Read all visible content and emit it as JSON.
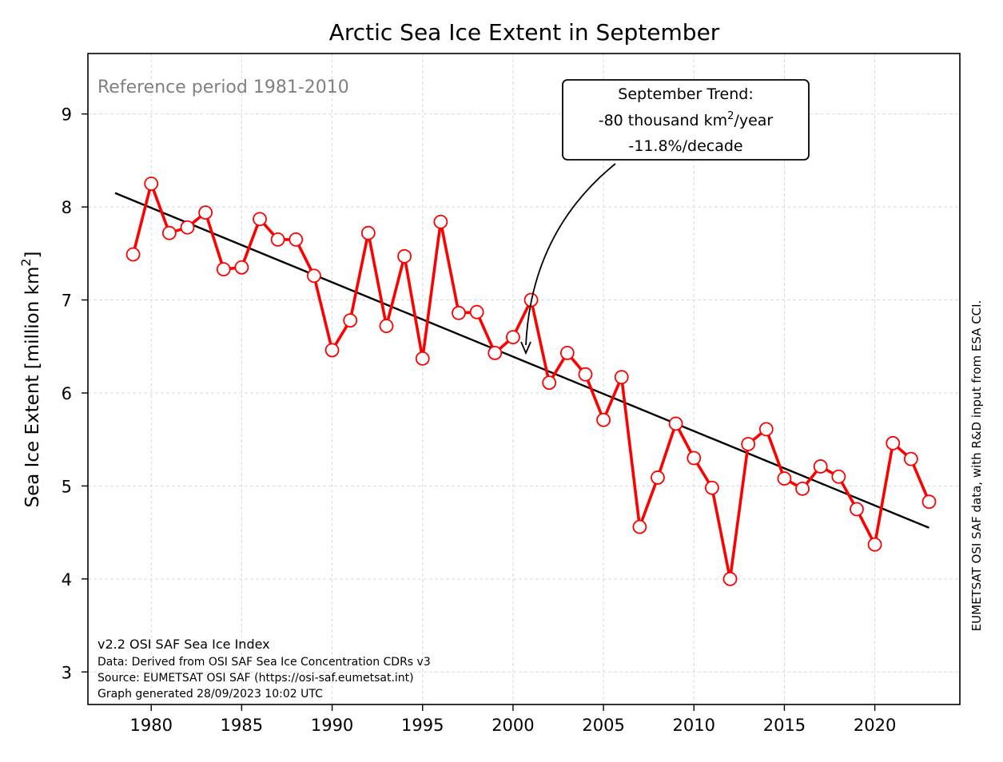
{
  "chart_data": {
    "type": "line",
    "title": "Arctic Sea Ice Extent in September",
    "ylabel": "Sea Ice Extent [million km²]",
    "ylabel_parts": [
      "Sea Ice Extent [million km",
      "2",
      "]"
    ],
    "xlim": [
      1976.5,
      2024.7
    ],
    "ylim": [
      2.65,
      9.65
    ],
    "xticks": [
      1980,
      1985,
      1990,
      1995,
      2000,
      2005,
      2010,
      2015,
      2020
    ],
    "yticks": [
      3,
      4,
      5,
      6,
      7,
      8,
      9
    ],
    "grid": true,
    "series": [
      {
        "color": "#ff0000",
        "x": [
          1979,
          1980,
          1981,
          1982,
          1983,
          1984,
          1985,
          1986,
          1987,
          1988,
          1989,
          1990,
          1991,
          1992,
          1993,
          1994,
          1995,
          1996,
          1997,
          1998,
          1999,
          2000,
          2001,
          2002,
          2003,
          2004,
          2005,
          2006,
          2007,
          2008,
          2009,
          2010,
          2011,
          2012,
          2013,
          2014,
          2015,
          2016,
          2017,
          2018,
          2019,
          2020,
          2021,
          2022,
          2023
        ],
        "y": [
          7.49,
          8.25,
          7.72,
          7.78,
          7.94,
          7.33,
          7.35,
          7.87,
          7.65,
          7.65,
          7.26,
          6.46,
          6.78,
          7.72,
          6.72,
          7.47,
          6.37,
          7.84,
          6.86,
          6.87,
          6.43,
          6.6,
          7.0,
          6.11,
          6.43,
          6.2,
          5.71,
          6.17,
          4.56,
          5.09,
          5.67,
          5.3,
          4.98,
          4.0,
          5.45,
          5.61,
          5.08,
          4.97,
          5.21,
          5.1,
          4.75,
          4.37,
          5.46,
          5.29,
          4.83
        ]
      }
    ],
    "trend": {
      "color": "#000000",
      "x": [
        1978,
        2023
      ],
      "y": [
        8.15,
        4.55
      ]
    },
    "annotations": {
      "reference_period": "Reference period 1981-2010",
      "trend_box": {
        "line1": "September Trend:",
        "line2_pre": "-80 thousand km",
        "line2_sup": "2",
        "line2_post": "/year",
        "line3": "-11.8%/decade",
        "arrow_target": {
          "x": 2000.5,
          "y": 6.4
        }
      },
      "credits": [
        "v2.2 OSI SAF Sea Ice Index",
        "Data: Derived from OSI SAF Sea Ice Concentration CDRs v3",
        "Source: EUMETSAT OSI SAF (https://osi-saf.eumetsat.int)",
        "Graph generated 28/09/2023 10:02 UTC"
      ],
      "side_note": "EUMETSAT OSI SAF data, with R&D input from ESA CCI."
    }
  }
}
